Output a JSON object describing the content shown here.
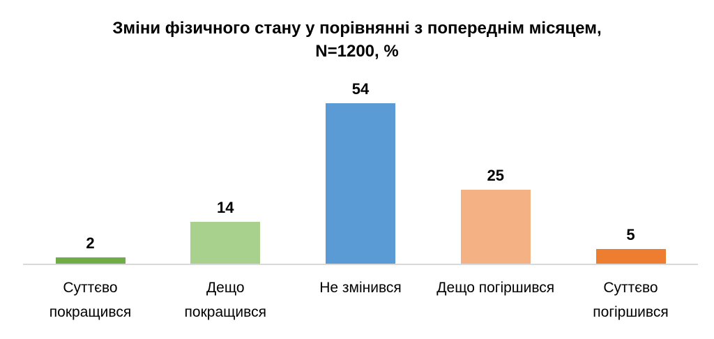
{
  "chart_data": {
    "type": "bar",
    "title": "Зміни фізичного стану у порівнянні з попереднім місяцем,\nN=1200, %",
    "categories": [
      "Суттєво покращився",
      "Дещо покращився",
      "Не змінився",
      "Дещо погіршився",
      "Суттєво погіршився"
    ],
    "category_label_lines": [
      [
        "Суттєво",
        "покращився"
      ],
      [
        "Дещо",
        "покращився"
      ],
      [
        "Не змінився"
      ],
      [
        "Дещо погіршився"
      ],
      [
        "Суттєво",
        "погіршився"
      ]
    ],
    "values": [
      2,
      14,
      54,
      25,
      5
    ],
    "value_labels": [
      "2",
      "14",
      "54",
      "25",
      "5"
    ],
    "bar_colors": [
      "#70AD47",
      "#A9D18E",
      "#5B9BD5",
      "#F4B183",
      "#ED7D31"
    ],
    "axis_color": "#d9d9d9",
    "xlabel": "",
    "ylabel": "",
    "ylim": [
      0,
      54
    ],
    "grid": false,
    "legend": false
  }
}
